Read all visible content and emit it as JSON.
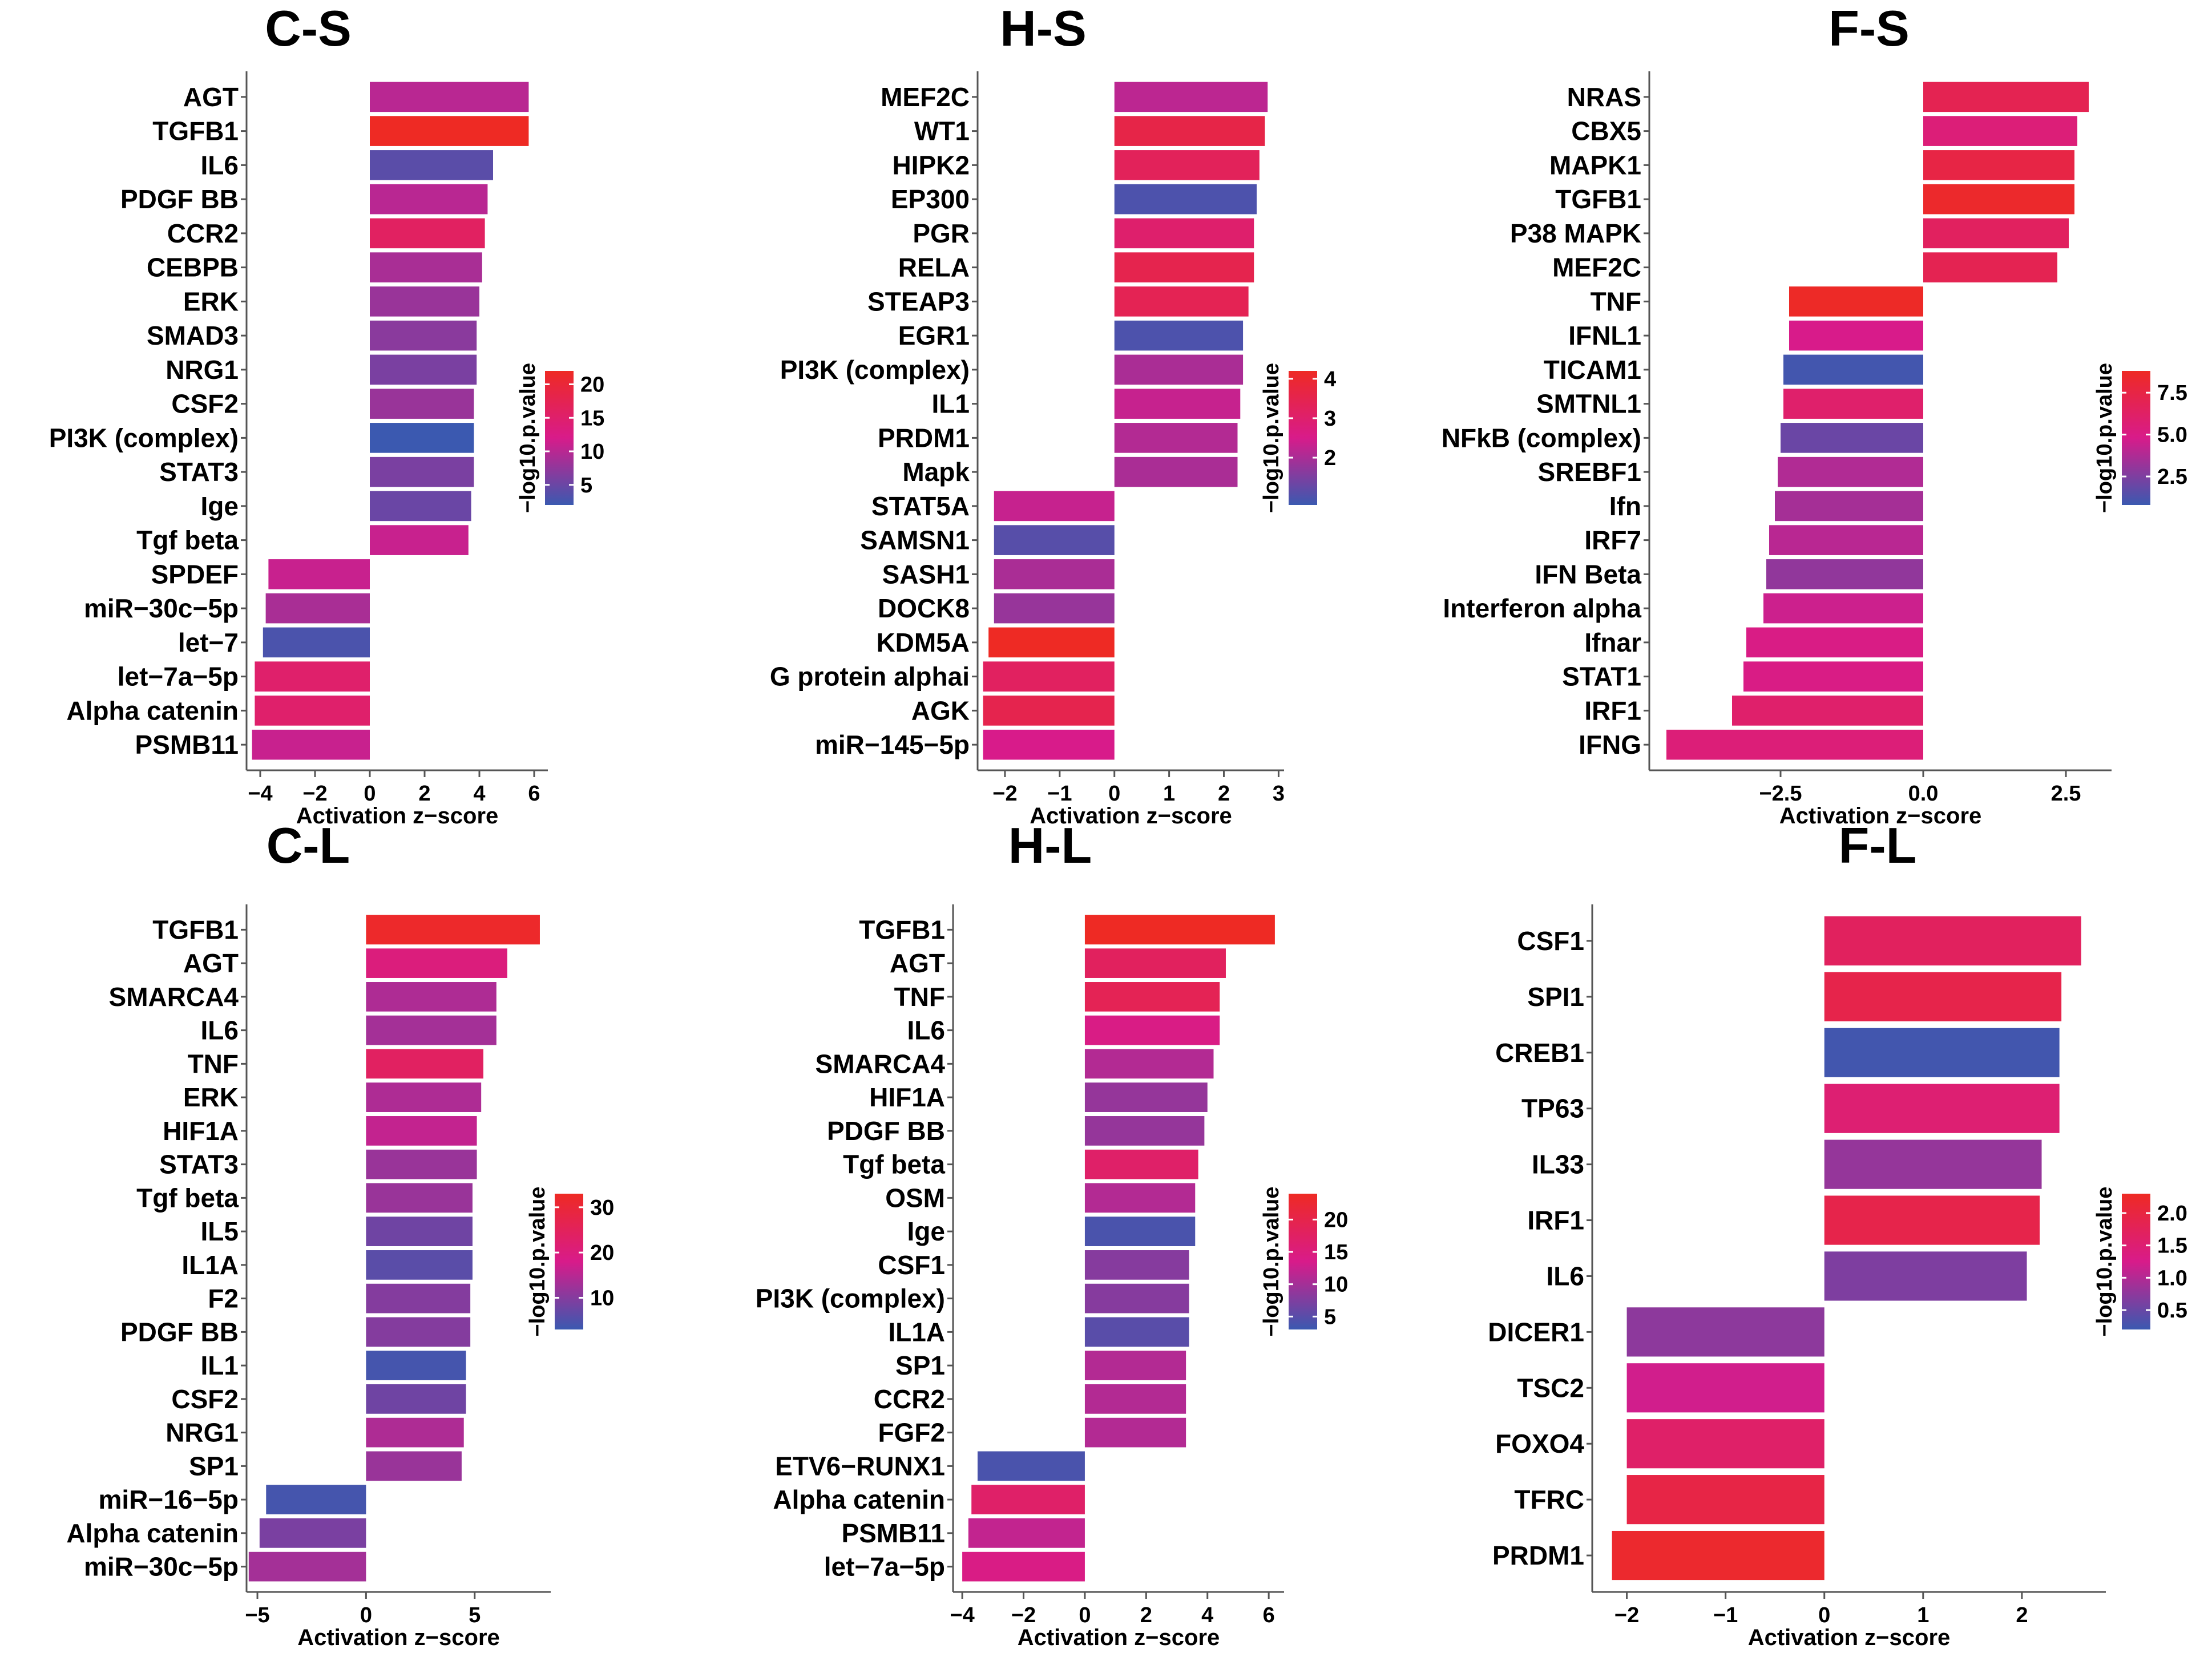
{
  "chart_data": [
    {
      "id": "cs",
      "type": "bar",
      "orientation": "horizontal",
      "title": "C-S",
      "xlabel": "Activation z−score",
      "xlim": [
        -4.5,
        6.5
      ],
      "xticks": [
        -4,
        -2,
        0,
        2,
        4,
        6
      ],
      "xtick_labels": [
        "−4",
        "−2",
        "0",
        "2",
        "4",
        "6"
      ],
      "categories": [
        "AGT",
        "TGFB1",
        "IL6",
        "PDGF BB",
        "CCR2",
        "CEBPB",
        "ERK",
        "SMAD3",
        "NRG1",
        "CSF2",
        "PI3K (complex)",
        "STAT3",
        "Ige",
        "Tgf beta",
        "SPDEF",
        "miR−30c−5p",
        "let−7",
        "let−7a−5p",
        "Alpha catenin",
        "PSMB11"
      ],
      "values": [
        5.8,
        5.8,
        4.5,
        4.3,
        4.2,
        4.1,
        4.0,
        3.9,
        3.9,
        3.8,
        3.8,
        3.8,
        3.7,
        3.6,
        -3.7,
        -3.8,
        -3.9,
        -4.2,
        -4.2,
        -4.3
      ],
      "color_values": [
        10,
        22,
        4,
        10,
        16,
        9,
        8,
        7,
        6,
        8,
        2,
        6,
        5,
        11,
        11,
        9,
        3,
        15,
        15,
        11
      ],
      "legend": {
        "title": "−log10.p.value",
        "min": 2,
        "max": 22,
        "ticks": [
          5,
          10,
          15,
          20
        ],
        "tick_labels": [
          "5",
          "10",
          "15",
          "20"
        ]
      }
    },
    {
      "id": "hs",
      "type": "bar",
      "orientation": "horizontal",
      "title": "H-S",
      "xlabel": "Activation z−score",
      "xlim": [
        -2.5,
        3.1
      ],
      "xticks": [
        -2,
        -1,
        0,
        1,
        2,
        3
      ],
      "xtick_labels": [
        "−2",
        "−1",
        "0",
        "1",
        "2",
        "3"
      ],
      "categories": [
        "MEF2C",
        "WT1",
        "HIPK2",
        "EP300",
        "PGR",
        "RELA",
        "STEAP3",
        "EGR1",
        "PI3K (complex)",
        "IL1",
        "PRDM1",
        "Mapk",
        "STAT5A",
        "SAMSN1",
        "SASH1",
        "DOCK8",
        "KDM5A",
        "G protein alphai",
        "AGK",
        "miR−145−5p"
      ],
      "values": [
        2.8,
        2.75,
        2.65,
        2.6,
        2.55,
        2.55,
        2.45,
        2.35,
        2.35,
        2.3,
        2.25,
        2.25,
        -2.2,
        -2.2,
        -2.2,
        -2.2,
        -2.3,
        -2.4,
        -2.4,
        -2.4
      ],
      "color_values": [
        2.2,
        3.6,
        3.3,
        1.0,
        3.0,
        3.5,
        3.4,
        1.0,
        2.0,
        2.3,
        2.1,
        2.0,
        2.3,
        1.1,
        2.0,
        1.8,
        4.2,
        3.2,
        3.5,
        2.5
      ],
      "legend": {
        "title": "−log10.p.value",
        "min": 0.8,
        "max": 4.2,
        "ticks": [
          2,
          3,
          4
        ],
        "tick_labels": [
          "2",
          "3",
          "4"
        ]
      }
    },
    {
      "id": "fs",
      "type": "bar",
      "orientation": "horizontal",
      "title": "F-S",
      "xlabel": "Activation z−score",
      "xlim": [
        -4.8,
        3.3
      ],
      "xticks": [
        -2.5,
        0,
        2.5
      ],
      "xtick_labels": [
        "−2.5",
        "0.0",
        "2.5"
      ],
      "categories": [
        "NRAS",
        "CBX5",
        "MAPK1",
        "TGFB1",
        "P38 MAPK",
        "MEF2C",
        "TNF",
        "IFNL1",
        "TICAM1",
        "SMTNL1",
        "NFkB (complex)",
        "SREBF1",
        "Ifn",
        "IRF7",
        "IFN Beta",
        "Interferon alpha",
        "Ifnar",
        "STAT1",
        "IRF1",
        "IFNG"
      ],
      "values": [
        2.9,
        2.7,
        2.65,
        2.65,
        2.55,
        2.35,
        -2.35,
        -2.35,
        -2.45,
        -2.45,
        -2.5,
        -2.55,
        -2.6,
        -2.7,
        -2.75,
        -2.8,
        -3.1,
        -3.15,
        -3.35,
        -4.5
      ],
      "color_values": [
        7.0,
        5.5,
        7.5,
        8.5,
        6.5,
        7.0,
        8.7,
        4.8,
        1.0,
        6.0,
        2.0,
        3.8,
        3.5,
        4.0,
        3.0,
        4.5,
        5.0,
        5.0,
        6.0,
        5.5
      ],
      "legend": {
        "title": "−log10.p.value",
        "min": 0.8,
        "max": 8.8,
        "ticks": [
          2.5,
          5.0,
          7.5
        ],
        "tick_labels": [
          "2.5",
          "5.0",
          "7.5"
        ]
      }
    },
    {
      "id": "cl",
      "type": "bar",
      "orientation": "horizontal",
      "title": "C-L",
      "xlabel": "Activation z−score",
      "xlim": [
        -5.5,
        8.5
      ],
      "xticks": [
        -5,
        0,
        5
      ],
      "xtick_labels": [
        "−5",
        "0",
        "5"
      ],
      "categories": [
        "TGFB1",
        "AGT",
        "SMARCA4",
        "IL6",
        "TNF",
        "ERK",
        "HIF1A",
        "STAT3",
        "Tgf beta",
        "IL5",
        "IL1A",
        "F2",
        "PDGF BB",
        "IL1",
        "CSF2",
        "NRG1",
        "SP1",
        "miR−16−5p",
        "Alpha catenin",
        "miR−30c−5p"
      ],
      "values": [
        8.0,
        6.5,
        6.0,
        6.0,
        5.4,
        5.3,
        5.1,
        5.1,
        4.9,
        4.9,
        4.9,
        4.8,
        4.8,
        4.6,
        4.6,
        4.5,
        4.4,
        -4.6,
        -4.9,
        -5.4
      ],
      "color_values": [
        32,
        20,
        14,
        13,
        24,
        14,
        16,
        12,
        12,
        8,
        6,
        10,
        10,
        4,
        8,
        14,
        12,
        4,
        9,
        13
      ],
      "legend": {
        "title": "−log10.p.value",
        "min": 3,
        "max": 33,
        "ticks": [
          10,
          20,
          30
        ],
        "tick_labels": [
          "10",
          "20",
          "30"
        ]
      }
    },
    {
      "id": "hl",
      "type": "bar",
      "orientation": "horizontal",
      "title": "H-L",
      "xlabel": "Activation z−score",
      "xlim": [
        -4.3,
        6.5
      ],
      "xticks": [
        -4,
        -2,
        0,
        2,
        4,
        6
      ],
      "xtick_labels": [
        "−4",
        "−2",
        "0",
        "2",
        "4",
        "6"
      ],
      "categories": [
        "TGFB1",
        "AGT",
        "TNF",
        "IL6",
        "SMARCA4",
        "HIF1A",
        "PDGF BB",
        "Tgf beta",
        "OSM",
        "Ige",
        "CSF1",
        "PI3K (complex)",
        "IL1A",
        "SP1",
        "CCR2",
        "FGF2",
        "ETV6−RUNX1",
        "Alpha catenin",
        "PSMB11",
        "let−7a−5p"
      ],
      "values": [
        6.2,
        4.6,
        4.4,
        4.4,
        4.2,
        4.0,
        3.9,
        3.7,
        3.6,
        3.6,
        3.4,
        3.4,
        3.4,
        3.3,
        3.3,
        3.3,
        -3.5,
        -3.7,
        -3.8,
        -4.0
      ],
      "color_values": [
        24,
        18,
        19,
        14,
        11,
        9,
        9,
        17,
        11,
        4,
        8,
        8,
        5,
        11,
        11,
        11,
        4,
        17,
        12,
        14
      ],
      "legend": {
        "title": "−log10.p.value",
        "min": 3,
        "max": 24,
        "ticks": [
          5,
          10,
          15,
          20
        ],
        "tick_labels": [
          "5",
          "10",
          "15",
          "20"
        ]
      }
    },
    {
      "id": "fl",
      "type": "bar",
      "orientation": "horizontal",
      "title": "F-L",
      "xlabel": "Activation z−score",
      "xlim": [
        -2.35,
        2.85
      ],
      "xticks": [
        -2,
        -1,
        0,
        1,
        2
      ],
      "xtick_labels": [
        "−2",
        "−1",
        "0",
        "1",
        "2"
      ],
      "categories": [
        "CSF1",
        "SPI1",
        "CREB1",
        "TP63",
        "IL33",
        "IRF1",
        "IL6",
        "DICER1",
        "TSC2",
        "FOXO4",
        "TFRC",
        "PRDM1"
      ],
      "values": [
        2.6,
        2.4,
        2.38,
        2.38,
        2.2,
        2.18,
        2.05,
        -2.0,
        -2.0,
        -2.0,
        -2.0,
        -2.15
      ],
      "color_values": [
        1.7,
        1.9,
        0.25,
        1.5,
        0.8,
        1.9,
        0.65,
        0.75,
        1.2,
        1.6,
        1.95,
        2.2
      ],
      "legend": {
        "title": "−log10.p.value",
        "min": 0.2,
        "max": 2.3,
        "ticks": [
          0.5,
          1.0,
          1.5,
          2.0
        ],
        "tick_labels": [
          "0.5",
          "1.0",
          "1.5",
          "2.0"
        ]
      }
    }
  ],
  "colors": {
    "low": "#3b59b0",
    "mid": "#d81b8a",
    "high": "#ee2a24"
  }
}
